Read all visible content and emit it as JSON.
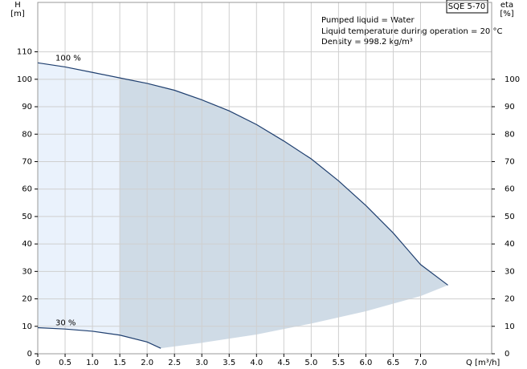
{
  "chart_data": {
    "type": "line",
    "model": "SQE 5-70",
    "annotations": [
      "Pumped liquid = Water",
      "Liquid temperature during operation = 20 °C",
      "Density = 998.2 kg/m³"
    ],
    "y_label": "H",
    "y_unit": "[m]",
    "y2_label": "eta",
    "y2_unit": "[%]",
    "x_label": "Q [m³/h]",
    "xlim": [
      0,
      8.3
    ],
    "ylim": [
      0,
      128
    ],
    "y2lim": [
      0,
      128
    ],
    "xticks": [
      0,
      0.5,
      {
        "value": 1,
        "label": "1.0"
      },
      1.5,
      {
        "value": 2,
        "label": "2.0"
      },
      2.5,
      {
        "value": 3,
        "label": "3.0"
      },
      3.5,
      {
        "value": 4,
        "label": "4.0"
      },
      4.5,
      {
        "value": 5,
        "label": "5.0"
      },
      5.5,
      {
        "value": 6,
        "label": "6.0"
      },
      6.5,
      {
        "value": 7,
        "label": "7.0"
      }
    ],
    "yticks": [
      0,
      10,
      20,
      30,
      40,
      50,
      60,
      70,
      80,
      90,
      100,
      110
    ],
    "y2ticks": [
      0,
      10,
      20,
      30,
      40,
      50,
      60,
      70,
      80,
      90,
      100
    ],
    "grid": true,
    "min_flow": 1.5,
    "series": [
      {
        "name": "100 %",
        "color": "#1f3f6f",
        "x": [
          0,
          0.5,
          1,
          1.5,
          2,
          2.5,
          3,
          3.5,
          4,
          4.5,
          5,
          5.5,
          6,
          6.5,
          7,
          7.5
        ],
        "values": [
          106,
          104.5,
          102.5,
          100.5,
          98.5,
          96,
          92.5,
          88.5,
          83.5,
          77.5,
          71,
          63,
          54,
          44,
          32.5,
          25
        ]
      },
      {
        "name": "30 %",
        "color": "#1f3f6f",
        "x": [
          0,
          0.5,
          1,
          1.5,
          2,
          2.25
        ],
        "values": [
          9.5,
          9,
          8.2,
          6.8,
          4.3,
          2
        ]
      },
      {
        "color": "#cfdbe6",
        "x": [
          2.25,
          3,
          4,
          5,
          6,
          7,
          7.5
        ],
        "values": [
          2,
          4,
          7,
          11,
          15.5,
          21,
          25
        ]
      }
    ]
  }
}
